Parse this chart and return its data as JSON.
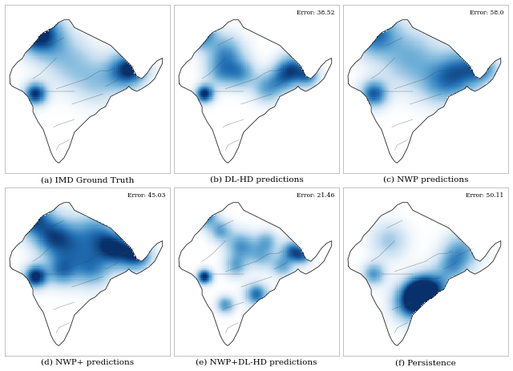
{
  "titles": [
    "(a) IMD Ground Truth",
    "(b) DL-HD predictions",
    "(c) NWP predictions",
    "(d) NWP+ predictions",
    "(e) NWP+DL-HD predictions",
    "(f) Persistence"
  ],
  "errors": [
    null,
    "Error: 38.52",
    "Error: 58.0",
    "Error: 45.03",
    "Error: 21.46",
    "Error: 50.11"
  ],
  "figsize": [
    6.4,
    4.63
  ],
  "dpi": 100,
  "background_color": "#ffffff",
  "india_border_color": "#222222",
  "india_border_lw": 0.6,
  "state_border_color": "#444444",
  "state_border_lw": 0.3,
  "error_fontsize": 5.5,
  "caption_fontsize": 7.5,
  "india_bounds": {
    "lon_min": 67.0,
    "lon_max": 99.0,
    "lat_min": 5.5,
    "lat_max": 38.5
  }
}
